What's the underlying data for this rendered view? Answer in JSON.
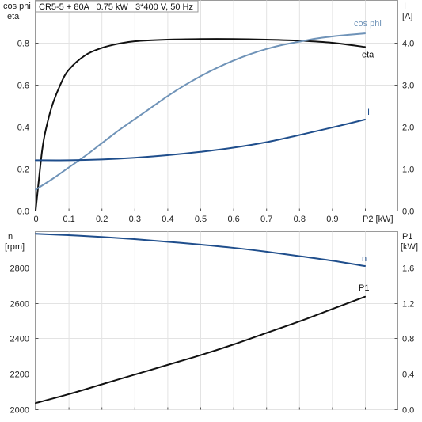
{
  "header": {
    "title": "CR5-5 + 80A   0.75 kW   3*400 V, 50 Hz"
  },
  "chart_data": [
    {
      "type": "line",
      "title": "CR5-5 + 80A   0.75 kW   3*400 V, 50 Hz",
      "xlabel": "P2 [kW]",
      "ylabel_left": [
        "cos phi",
        "eta"
      ],
      "ylabel_right": [
        "I",
        "[A]"
      ],
      "xlim": [
        0,
        1.0
      ],
      "ylim_left": [
        0,
        1.0
      ],
      "ylim_right": [
        0,
        5.0
      ],
      "x_ticks": [
        "0",
        "0.1",
        "0.2",
        "0.3",
        "0.4",
        "0.5",
        "0.6",
        "0.7",
        "0.8",
        "0.9"
      ],
      "x_tick_values": [
        0,
        0.1,
        0.2,
        0.3,
        0.4,
        0.5,
        0.6,
        0.7,
        0.8,
        0.9
      ],
      "left_ticks": [
        "0.0",
        "0.2",
        "0.4",
        "0.6",
        "0.8"
      ],
      "left_tick_values": [
        0,
        0.2,
        0.4,
        0.6,
        0.8
      ],
      "right_ticks": [
        "0.0",
        "1.0",
        "2.0",
        "3.0",
        "4.0"
      ],
      "right_tick_values": [
        0,
        1,
        2,
        3,
        4
      ],
      "grid": true,
      "series": [
        {
          "name": "eta",
          "axis": "left",
          "color": "#111111",
          "x": [
            0,
            0.01,
            0.02,
            0.03,
            0.05,
            0.075,
            0.1,
            0.15,
            0.2,
            0.25,
            0.3,
            0.4,
            0.5,
            0.6,
            0.7,
            0.8,
            0.9,
            1.0
          ],
          "y": [
            0,
            0.15,
            0.29,
            0.38,
            0.5,
            0.6,
            0.67,
            0.74,
            0.775,
            0.795,
            0.807,
            0.815,
            0.818,
            0.818,
            0.815,
            0.81,
            0.8,
            0.78
          ]
        },
        {
          "name": "cos phi",
          "axis": "left",
          "color": "#6f93b8",
          "x": [
            0,
            0.05,
            0.1,
            0.15,
            0.2,
            0.25,
            0.3,
            0.35,
            0.4,
            0.45,
            0.5,
            0.55,
            0.6,
            0.65,
            0.7,
            0.75,
            0.8,
            0.85,
            0.9,
            0.95,
            1.0
          ],
          "y": [
            0.1,
            0.15,
            0.205,
            0.26,
            0.32,
            0.38,
            0.435,
            0.49,
            0.545,
            0.595,
            0.64,
            0.68,
            0.715,
            0.745,
            0.77,
            0.79,
            0.805,
            0.82,
            0.83,
            0.838,
            0.845
          ]
        },
        {
          "name": "I",
          "axis": "right",
          "color": "#1f4e8c",
          "x": [
            0,
            0.1,
            0.2,
            0.3,
            0.4,
            0.5,
            0.6,
            0.7,
            0.8,
            0.9,
            1.0
          ],
          "y": [
            1.2,
            1.2,
            1.22,
            1.26,
            1.32,
            1.4,
            1.5,
            1.63,
            1.8,
            1.98,
            2.17
          ]
        }
      ]
    },
    {
      "type": "line",
      "xlabel": "",
      "ylabel_left": [
        "n",
        "[rpm]"
      ],
      "ylabel_right": [
        "P1",
        "[kW]"
      ],
      "xlim": [
        0,
        1.0
      ],
      "ylim_left": [
        2000,
        3000
      ],
      "ylim_right": [
        0,
        2.0
      ],
      "left_ticks": [
        "2000",
        "2200",
        "2400",
        "2600",
        "2800"
      ],
      "left_tick_values": [
        2000,
        2200,
        2400,
        2600,
        2800
      ],
      "right_ticks": [
        "0.0",
        "0.4",
        "0.8",
        "1.2",
        "1.6"
      ],
      "right_tick_values": [
        0,
        0.4,
        0.8,
        1.2,
        1.6
      ],
      "grid": true,
      "series": [
        {
          "name": "n",
          "axis": "left",
          "color": "#1f4e8c",
          "x": [
            0,
            0.1,
            0.2,
            0.3,
            0.4,
            0.5,
            0.6,
            0.7,
            0.8,
            0.9,
            1.0
          ],
          "y": [
            2990,
            2982,
            2972,
            2960,
            2945,
            2929,
            2911,
            2889,
            2864,
            2838,
            2808
          ]
        },
        {
          "name": "P1",
          "axis": "right",
          "color": "#111111",
          "x": [
            0,
            0.1,
            0.2,
            0.3,
            0.4,
            0.5,
            0.6,
            0.7,
            0.8,
            0.9,
            1.0
          ],
          "y": [
            0.07,
            0.17,
            0.28,
            0.39,
            0.5,
            0.61,
            0.73,
            0.86,
            0.99,
            1.13,
            1.27
          ]
        }
      ]
    }
  ]
}
